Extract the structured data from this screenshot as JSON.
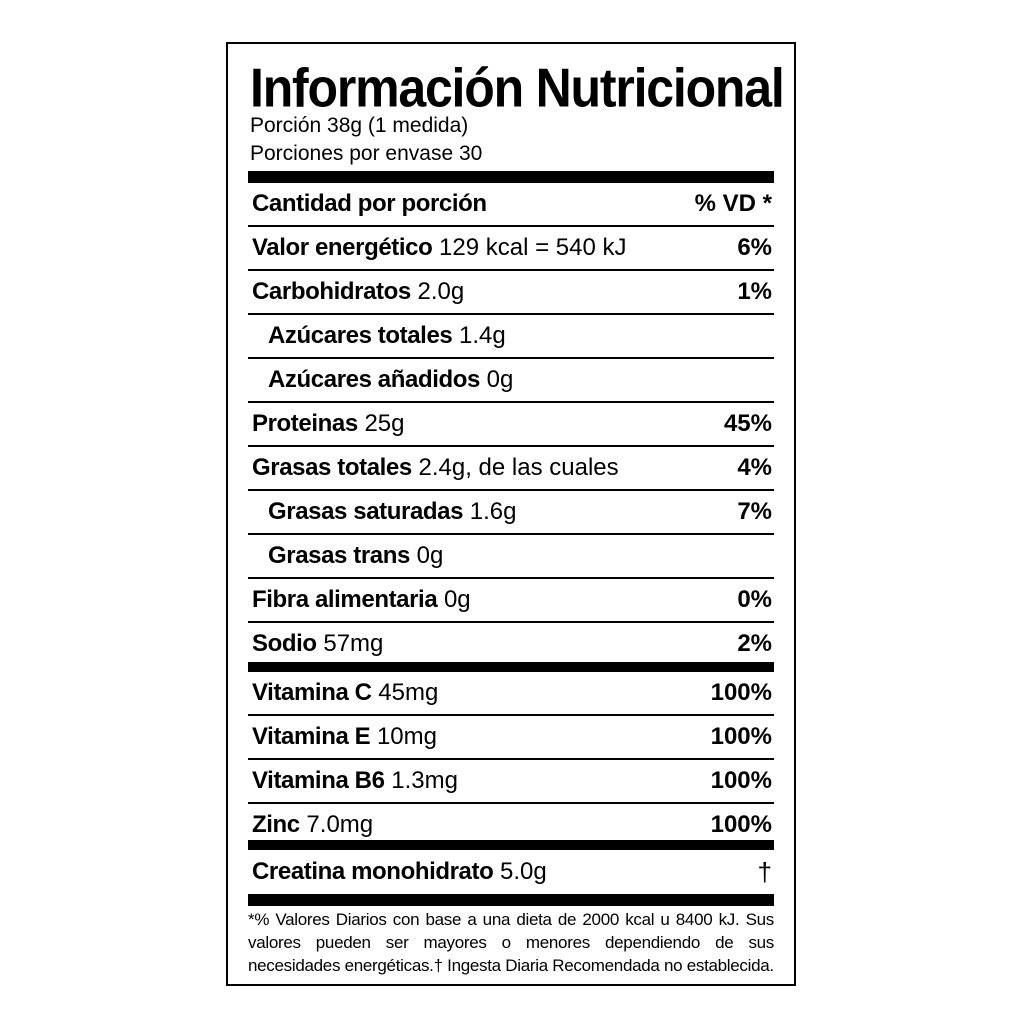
{
  "title": "Información Nutricional",
  "serving_size": "Porción 38g (1 medida)",
  "servings_per_container": "Porciones por envase 30",
  "header": {
    "left": "Cantidad por porción",
    "right": "% VD *"
  },
  "nutrients": [
    {
      "name": "Valor energético",
      "amount": "129 kcal = 540 kJ",
      "dv": "6%"
    },
    {
      "name": "Carbohidratos",
      "amount": "2.0g",
      "dv": "1%"
    },
    {
      "name": "Azúcares totales",
      "amount": "1.4g",
      "dv": ""
    },
    {
      "name": "Azúcares añadidos",
      "amount": "0g",
      "dv": ""
    },
    {
      "name": "Proteinas",
      "amount": "25g",
      "dv": "45%"
    },
    {
      "name": "Grasas totales",
      "amount": "2.4g, de las cuales",
      "dv": "4%"
    },
    {
      "name": "Grasas saturadas",
      "amount": "1.6g",
      "dv": "7%"
    },
    {
      "name": "Grasas trans",
      "amount": "0g",
      "dv": ""
    },
    {
      "name": "Fibra alimentaria",
      "amount": "0g",
      "dv": "0%"
    },
    {
      "name": "Sodio",
      "amount": "57mg",
      "dv": "2%"
    }
  ],
  "vitamins": [
    {
      "name": "Vitamina C",
      "amount": "45mg",
      "dv": "100%"
    },
    {
      "name": "Vitamina E",
      "amount": "10mg",
      "dv": "100%"
    },
    {
      "name": "Vitamina B6",
      "amount": "1.3mg",
      "dv": "100%"
    },
    {
      "name": "Zinc",
      "amount": "7.0mg",
      "dv": "100%"
    }
  ],
  "creatine": {
    "name": "Creatina monohidrato",
    "amount": "5.0g",
    "dv": "†"
  },
  "footnote": "*% Valores Diarios con base a una dieta de 2000 kcal u 8400 kJ. Sus valores pueden ser mayores o menores dependiendo de sus necesidades energéticas.† Ingesta Diaria Recomendada no establecida."
}
